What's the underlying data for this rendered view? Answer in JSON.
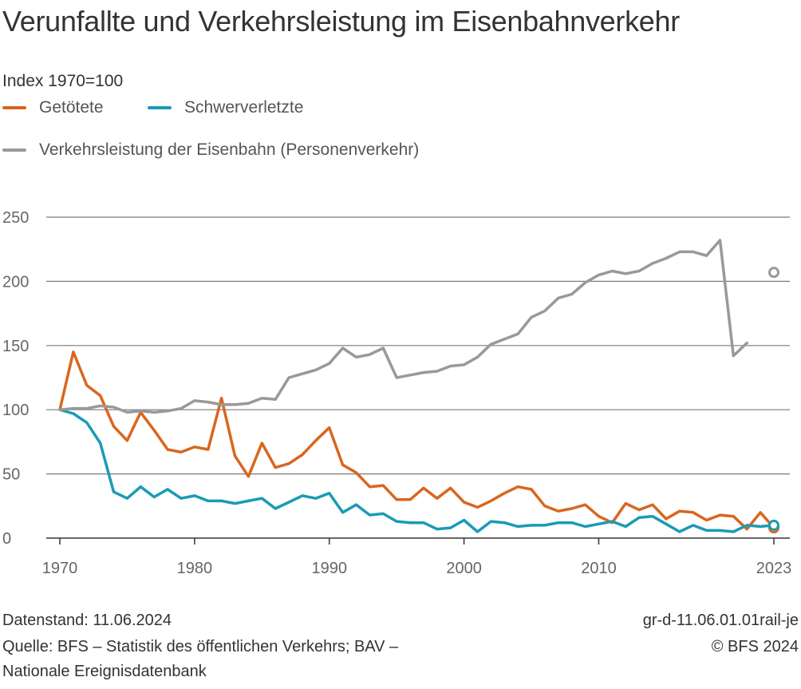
{
  "title": "Verunfallte und Verkehrsleistung im Eisenbahnverkehr",
  "footer": {
    "datenstand": "Datenstand: 11.06.2024",
    "quelle_line1": "Quelle: BFS – Statistik des öffentlichen Verkehrs; BAV –",
    "quelle_line2": "Nationale Ereignisdatenbank",
    "code": "gr-d-11.06.01.01rail-je",
    "copyright": "© BFS 2024"
  },
  "chart_data": {
    "type": "line",
    "subtitle": "Index 1970=100",
    "legend_placement": "top-left",
    "grid": "horizontal",
    "ylim": [
      0,
      250
    ],
    "yticks": [
      0,
      50,
      100,
      150,
      200,
      250
    ],
    "xlim": [
      1970,
      2023
    ],
    "xticks": [
      1970,
      1980,
      1990,
      2000,
      2010,
      2023
    ],
    "x": [
      1970,
      1971,
      1972,
      1973,
      1974,
      1975,
      1976,
      1977,
      1978,
      1979,
      1980,
      1981,
      1982,
      1983,
      1984,
      1985,
      1986,
      1987,
      1988,
      1989,
      1990,
      1991,
      1992,
      1993,
      1994,
      1995,
      1996,
      1997,
      1998,
      1999,
      2000,
      2001,
      2002,
      2003,
      2004,
      2005,
      2006,
      2007,
      2008,
      2009,
      2010,
      2011,
      2012,
      2013,
      2014,
      2015,
      2016,
      2017,
      2018,
      2019,
      2020,
      2021,
      2022,
      2023
    ],
    "series": [
      {
        "name": "Getötete",
        "color": "#d9661f",
        "values": [
          100,
          145,
          119,
          111,
          87,
          76,
          98,
          84,
          69,
          67,
          71,
          69,
          109,
          64,
          48,
          74,
          55,
          58,
          65,
          76,
          86,
          57,
          51,
          40,
          41,
          30,
          30,
          39,
          31,
          39,
          28,
          24,
          29,
          35,
          40,
          38,
          25,
          21,
          23,
          26,
          17,
          12,
          27,
          22,
          26,
          15,
          21,
          20,
          14,
          18,
          17,
          7,
          20,
          8
        ]
      },
      {
        "name": "Schwerverletzte",
        "color": "#1a9bb5",
        "values": [
          100,
          97,
          90,
          74,
          36,
          31,
          40,
          32,
          38,
          31,
          33,
          29,
          29,
          27,
          29,
          31,
          23,
          28,
          33,
          31,
          35,
          20,
          26,
          18,
          19,
          13,
          12,
          12,
          7,
          8,
          14,
          5,
          13,
          12,
          9,
          10,
          10,
          12,
          12,
          9,
          11,
          13,
          9,
          16,
          17,
          11,
          5,
          10,
          6,
          6,
          5,
          10,
          9,
          10
        ]
      },
      {
        "name": "Verkehrsleistung der Eisenbahn (Personenverkehr)",
        "color": "#999999",
        "values": [
          100,
          101,
          101,
          103,
          102,
          98,
          99,
          98,
          99,
          101,
          107,
          106,
          104,
          104,
          105,
          109,
          108,
          125,
          128,
          131,
          136,
          148,
          141,
          143,
          148,
          125,
          127,
          129,
          130,
          134,
          135,
          141,
          151,
          155,
          159,
          172,
          177,
          187,
          190,
          199,
          205,
          208,
          206,
          208,
          214,
          218,
          223,
          223,
          220,
          232,
          142,
          152,
          null,
          207
        ]
      }
    ]
  }
}
